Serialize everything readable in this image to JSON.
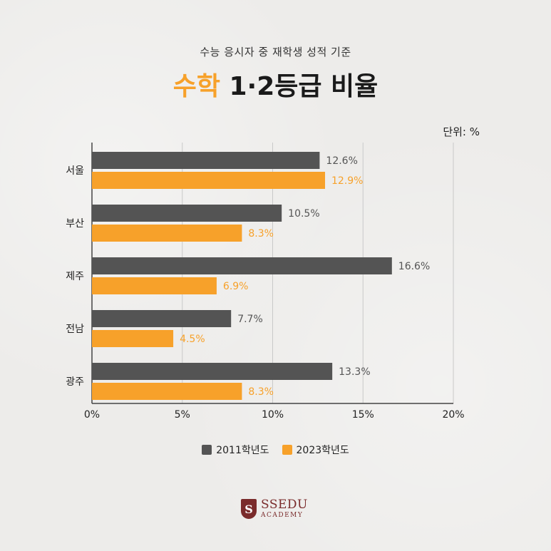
{
  "header": {
    "subtitle": "수능 응시자 중 재학생 성적 기준",
    "title_accent": "수학",
    "title_rest": " 1·2등급 비율"
  },
  "unit_label": "단위: %",
  "colors": {
    "series_2011": "#545454",
    "series_2023": "#f7a12a",
    "accent": "#f7a12a"
  },
  "chart_data": {
    "type": "bar",
    "orientation": "horizontal",
    "categories": [
      "서울",
      "부산",
      "제주",
      "전남",
      "광주"
    ],
    "series": [
      {
        "name": "2011학년도",
        "values": [
          12.6,
          10.5,
          16.6,
          7.7,
          13.3
        ],
        "labels": [
          "12.6%",
          "10.5%",
          "16.6%",
          "7.7%",
          "13.3%"
        ]
      },
      {
        "name": "2023학년도",
        "values": [
          12.9,
          8.3,
          6.9,
          4.5,
          8.3
        ],
        "labels": [
          "12.9%",
          "8.3%",
          "6.9%",
          "4.5%",
          "8.3%"
        ]
      }
    ],
    "xlim": [
      0,
      20
    ],
    "xticks": [
      0,
      5,
      10,
      15,
      20
    ],
    "xtick_labels": [
      "0%",
      "5%",
      "10%",
      "15%",
      "20%"
    ],
    "grid": true,
    "legend_position": "bottom-center"
  },
  "legend": {
    "item1": "2011학년도",
    "item2": "2023학년도"
  },
  "logo": {
    "mark": "S",
    "main": "SSEDU",
    "sub": "ACADEMY"
  }
}
